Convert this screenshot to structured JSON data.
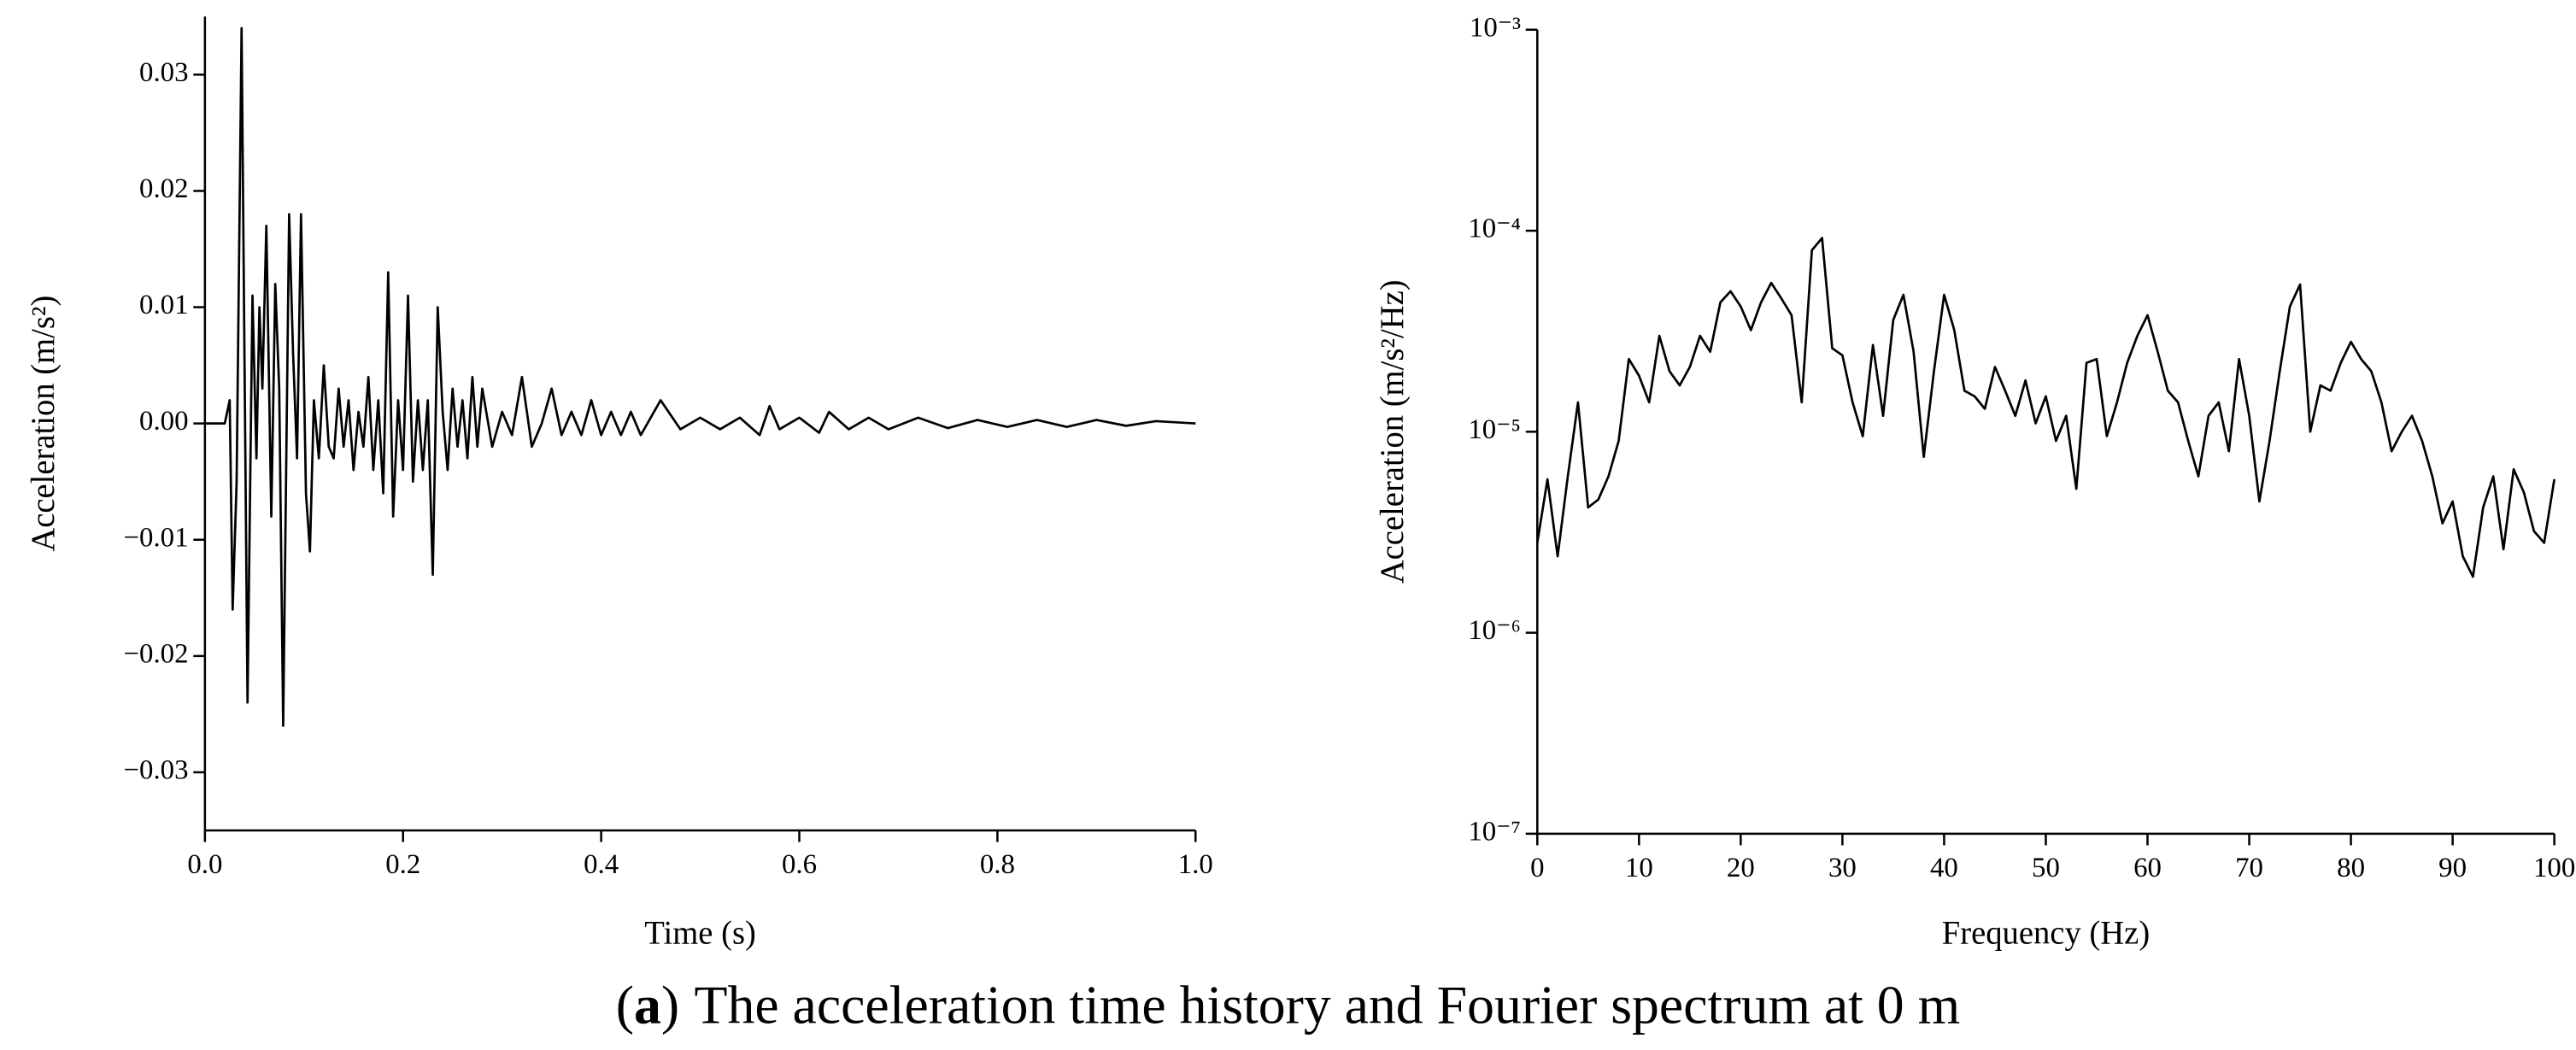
{
  "chart_data": [
    {
      "type": "line",
      "y_label": "Acceleration (m/s²)",
      "x_label": "Time (s)",
      "color": "#000000",
      "x": [
        0,
        0.02,
        0.025,
        0.028,
        0.032,
        0.037,
        0.043,
        0.048,
        0.052,
        0.055,
        0.058,
        0.062,
        0.067,
        0.071,
        0.075,
        0.079,
        0.085,
        0.089,
        0.093,
        0.097,
        0.102,
        0.106,
        0.11,
        0.115,
        0.12,
        0.125,
        0.13,
        0.135,
        0.14,
        0.145,
        0.15,
        0.155,
        0.16,
        0.165,
        0.17,
        0.175,
        0.18,
        0.185,
        0.19,
        0.195,
        0.2,
        0.205,
        0.21,
        0.215,
        0.22,
        0.225,
        0.23,
        0.235,
        0.24,
        0.245,
        0.25,
        0.255,
        0.26,
        0.265,
        0.27,
        0.275,
        0.28,
        0.29,
        0.3,
        0.31,
        0.32,
        0.33,
        0.34,
        0.35,
        0.36,
        0.37,
        0.38,
        0.39,
        0.4,
        0.41,
        0.42,
        0.43,
        0.44,
        0.46,
        0.48,
        0.5,
        0.52,
        0.54,
        0.56,
        0.57,
        0.58,
        0.6,
        0.62,
        0.63,
        0.65,
        0.67,
        0.69,
        0.72,
        0.75,
        0.78,
        0.81,
        0.84,
        0.87,
        0.9,
        0.93,
        0.96,
        1.0
      ],
      "values": [
        0,
        0,
        0.002,
        -0.016,
        -0.005,
        0.034,
        -0.024,
        0.011,
        -0.003,
        0.01,
        0.003,
        0.017,
        -0.008,
        0.012,
        0.003,
        -0.026,
        0.018,
        0.006,
        -0.003,
        0.018,
        -0.006,
        -0.011,
        0.002,
        -0.003,
        0.005,
        -0.002,
        -0.003,
        0.003,
        -0.002,
        0.002,
        -0.004,
        0.001,
        -0.002,
        0.004,
        -0.004,
        0.002,
        -0.006,
        0.013,
        -0.008,
        0.002,
        -0.004,
        0.011,
        -0.005,
        0.002,
        -0.004,
        0.002,
        -0.013,
        0.01,
        0.001,
        -0.004,
        0.003,
        -0.002,
        0.002,
        -0.003,
        0.004,
        -0.002,
        0.003,
        -0.002,
        0.001,
        -0.001,
        0.004,
        -0.002,
        0,
        0.003,
        -0.001,
        0.001,
        -0.001,
        0.002,
        -0.001,
        0.001,
        -0.001,
        0.001,
        -0.001,
        0.002,
        -0.0005,
        0.0005,
        -0.0005,
        0.0005,
        -0.001,
        0.0015,
        -0.0005,
        0.0005,
        -0.0008,
        0.001,
        -0.0005,
        0.0005,
        -0.0005,
        0.0005,
        -0.0004,
        0.0003,
        -0.0003,
        0.0003,
        -0.0003,
        0.0003,
        -0.0002,
        0.0002,
        0
      ],
      "xlim": [
        0,
        1.0
      ],
      "xticks": [
        {
          "value": 0,
          "label": "0.0"
        },
        0.2,
        0.4,
        0.6,
        0.8,
        {
          "value": 1,
          "label": "1.0"
        }
      ],
      "ylim": [
        -0.035,
        0.035
      ],
      "yticks": [
        {
          "value": -0.03,
          "label": "−0.03"
        },
        {
          "value": -0.02,
          "label": "−0.02"
        },
        {
          "value": -0.01,
          "label": "−0.01"
        },
        {
          "value": 0,
          "label": "0.00"
        },
        0.01,
        {
          "value": 0.02,
          "label": "0.02"
        },
        0.03
      ],
      "log_y": false
    },
    {
      "type": "line",
      "y_label": "Acceleration (m/s²/Hz)",
      "x_label": "Frequency (Hz)",
      "color": "#000000",
      "x": [
        0,
        1,
        2,
        3,
        4,
        5,
        6,
        7,
        8,
        9,
        10,
        11,
        12,
        13,
        14,
        15,
        16,
        17,
        18,
        19,
        20,
        21,
        22,
        23,
        24,
        25,
        26,
        27,
        28,
        29,
        30,
        31,
        32,
        33,
        34,
        35,
        36,
        37,
        38,
        39,
        40,
        41,
        42,
        43,
        44,
        45,
        46,
        47,
        48,
        49,
        50,
        51,
        52,
        53,
        54,
        55,
        56,
        57,
        58,
        59,
        60,
        61,
        62,
        63,
        64,
        65,
        66,
        67,
        68,
        69,
        70,
        71,
        72,
        73,
        74,
        75,
        76,
        77,
        78,
        79,
        80,
        81,
        82,
        83,
        84,
        85,
        86,
        87,
        88,
        89,
        90,
        91,
        92,
        93,
        94,
        95,
        96,
        97,
        98,
        99,
        100
      ],
      "values": [
        2.8e-06,
        5.8e-06,
        2.4e-06,
        6e-06,
        1.4e-05,
        4.2e-06,
        4.6e-06,
        6e-06,
        9e-06,
        2.3e-05,
        1.9e-05,
        1.4e-05,
        3e-05,
        2e-05,
        1.7e-05,
        2.1e-05,
        3e-05,
        2.5e-05,
        4.4e-05,
        5e-05,
        4.2e-05,
        3.2e-05,
        4.4e-05,
        5.5e-05,
        4.6e-05,
        3.8e-05,
        1.4e-05,
        8e-05,
        9.2e-05,
        2.6e-05,
        2.4e-05,
        1.4e-05,
        9.5e-06,
        2.7e-05,
        1.2e-05,
        3.6e-05,
        4.8e-05,
        2.5e-05,
        7.5e-06,
        2e-05,
        4.8e-05,
        3.2e-05,
        1.6e-05,
        1.5e-05,
        1.3e-05,
        2.1e-05,
        1.6e-05,
        1.2e-05,
        1.8e-05,
        1.1e-05,
        1.5e-05,
        9e-06,
        1.2e-05,
        5.2e-06,
        2.2e-05,
        2.3e-05,
        9.5e-06,
        1.4e-05,
        2.2e-05,
        3e-05,
        3.8e-05,
        2.5e-05,
        1.6e-05,
        1.4e-05,
        9e-06,
        6e-06,
        1.2e-05,
        1.4e-05,
        8e-06,
        2.3e-05,
        1.2e-05,
        4.5e-06,
        9e-06,
        2e-05,
        4.2e-05,
        5.4e-05,
        1e-05,
        1.7e-05,
        1.6e-05,
        2.2e-05,
        2.8e-05,
        2.3e-05,
        2e-05,
        1.4e-05,
        8e-06,
        1e-05,
        1.2e-05,
        9e-06,
        6e-06,
        3.5e-06,
        4.5e-06,
        2.4e-06,
        1.9e-06,
        4.2e-06,
        6e-06,
        2.6e-06,
        6.5e-06,
        5e-06,
        3.2e-06,
        2.8e-06,
        5.8e-06
      ],
      "xlim": [
        0,
        100
      ],
      "xticks": [
        0,
        10,
        20,
        30,
        40,
        50,
        60,
        70,
        80,
        90,
        100
      ],
      "ylim": [
        1e-07,
        0.001
      ],
      "yticks": [
        {
          "value": 1e-07,
          "label": "10⁻⁷"
        },
        {
          "value": 1e-06,
          "label": "10⁻⁶"
        },
        {
          "value": 1e-05,
          "label": "10⁻⁵"
        },
        {
          "value": 0.0001,
          "label": "10⁻⁴"
        },
        {
          "value": 0.001,
          "label": "10⁻³"
        }
      ],
      "log_y": true
    }
  ],
  "caption": {
    "open": "(",
    "label": "a",
    "close": ")",
    "text": "The acceleration time history and Fourier spectrum at 0 m"
  }
}
